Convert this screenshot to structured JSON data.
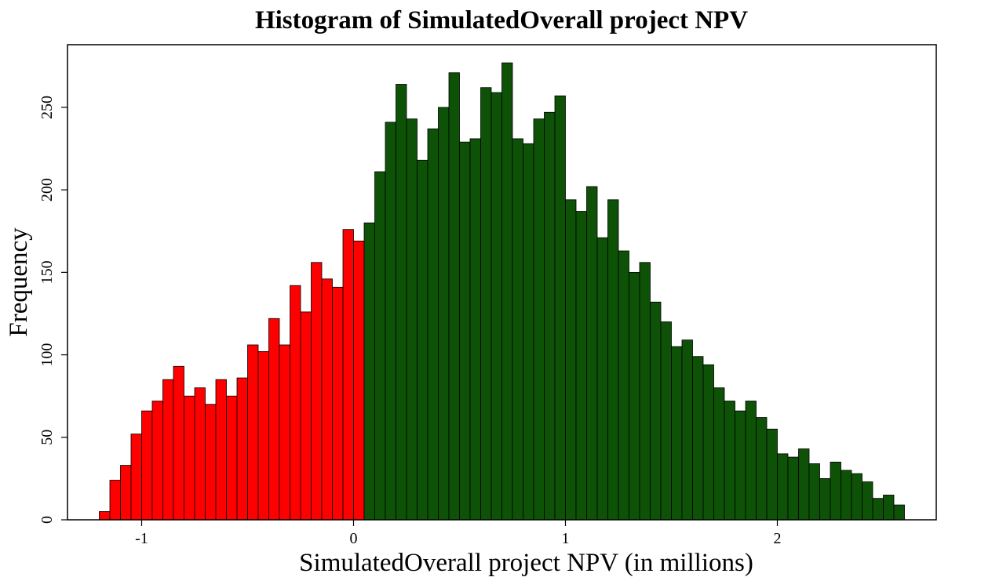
{
  "chart_data": {
    "type": "bar",
    "title": "Histogram of SimulatedOverall project NPV",
    "xlabel": "SimulatedOverall project NPV (in millions)",
    "ylabel": "Frequency",
    "xlim": [
      -1.35,
      2.75
    ],
    "ylim": [
      0,
      288
    ],
    "bin_width": 0.05,
    "threshold": 0.05,
    "x_ticks": [
      -1,
      0,
      1,
      2
    ],
    "x_tick_labels": [
      "-1",
      "0",
      "1",
      "2"
    ],
    "y_ticks": [
      0,
      50,
      100,
      150,
      200,
      250
    ],
    "y_tick_labels": [
      "0",
      "50",
      "100",
      "150",
      "200",
      "250"
    ],
    "grid": false,
    "legend": "none",
    "colors": {
      "negative": "#ff0000",
      "positive": "#0d5206",
      "edge": "#000000"
    },
    "bin_starts": [
      -1.2,
      -1.15,
      -1.1,
      -1.05,
      -1.0,
      -0.95,
      -0.9,
      -0.85,
      -0.8,
      -0.75,
      -0.7,
      -0.65,
      -0.6,
      -0.55,
      -0.5,
      -0.45,
      -0.4,
      -0.35,
      -0.3,
      -0.25,
      -0.2,
      -0.15,
      -0.1,
      -0.05,
      0.0,
      0.05,
      0.1,
      0.15,
      0.2,
      0.25,
      0.3,
      0.35,
      0.4,
      0.45,
      0.5,
      0.55,
      0.6,
      0.65,
      0.7,
      0.75,
      0.8,
      0.85,
      0.9,
      0.95,
      1.0,
      1.05,
      1.1,
      1.15,
      1.2,
      1.25,
      1.3,
      1.35,
      1.4,
      1.45,
      1.5,
      1.55,
      1.6,
      1.65,
      1.7,
      1.75,
      1.8,
      1.85,
      1.9,
      1.95,
      2.0,
      2.05,
      2.1,
      2.15,
      2.2,
      2.25,
      2.3,
      2.35,
      2.4,
      2.45,
      2.5,
      2.55
    ],
    "values": [
      5,
      24,
      33,
      52,
      66,
      72,
      85,
      93,
      75,
      80,
      70,
      85,
      75,
      86,
      106,
      102,
      122,
      106,
      142,
      126,
      156,
      146,
      141,
      176,
      169,
      180,
      211,
      241,
      264,
      243,
      218,
      237,
      250,
      271,
      229,
      231,
      262,
      259,
      277,
      231,
      228,
      243,
      247,
      257,
      194,
      187,
      202,
      171,
      194,
      163,
      150,
      156,
      132,
      120,
      105,
      109,
      99,
      94,
      80,
      72,
      66,
      72,
      62,
      55,
      40,
      38,
      43,
      34,
      25,
      35,
      30,
      28,
      23,
      13,
      15,
      9
    ]
  }
}
